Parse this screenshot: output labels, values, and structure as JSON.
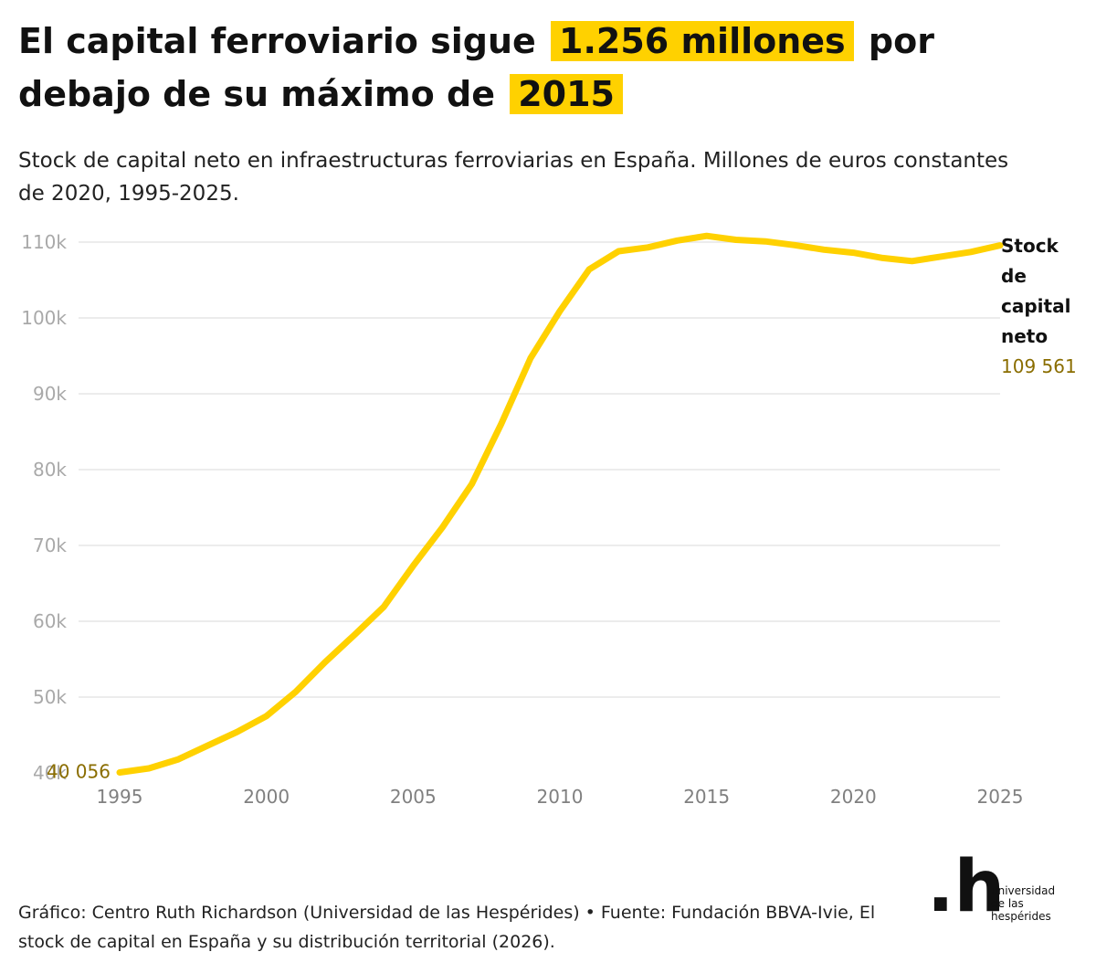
{
  "header": {
    "title_part1": "El capital ferroviario sigue",
    "title_highlight1": "1.256 millones",
    "title_part2": "por debajo de su máximo de",
    "title_highlight2": "2015",
    "subtitle": "Stock de capital neto en infraestructuras ferroviarias en España. Millones de euros constantes de 2020, 1995-2025."
  },
  "colors": {
    "line": "#ffd100",
    "highlight": "#ffd100",
    "grid": "#e6e6e6",
    "value_label": "#8a6d00"
  },
  "chart_data": {
    "type": "line",
    "title": "",
    "xlabel": "",
    "ylabel": "",
    "x": [
      1995,
      1996,
      1997,
      1998,
      1999,
      2000,
      2001,
      2002,
      2003,
      2004,
      2005,
      2006,
      2007,
      2008,
      2009,
      2010,
      2011,
      2012,
      2013,
      2014,
      2015,
      2016,
      2017,
      2018,
      2019,
      2020,
      2021,
      2022,
      2023,
      2024,
      2025
    ],
    "series": [
      {
        "name": "Stock de capital neto",
        "values": [
          40056,
          40600,
          41800,
          43600,
          45400,
          47500,
          50700,
          54600,
          58200,
          61900,
          67300,
          72400,
          78100,
          86000,
          94700,
          100900,
          106400,
          108800,
          109300,
          110200,
          110817,
          110300,
          110100,
          109600,
          109000,
          108600,
          107900,
          107500,
          108100,
          108700,
          109561
        ]
      }
    ],
    "ylim": [
      40000,
      110000
    ],
    "xlim": [
      1995,
      2025
    ],
    "y_ticks": [
      "40k",
      "50k",
      "60k",
      "70k",
      "80k",
      "90k",
      "100k",
      "110k"
    ],
    "y_tick_values": [
      40000,
      50000,
      60000,
      70000,
      80000,
      90000,
      100000,
      110000
    ],
    "x_ticks": [
      "1995",
      "2000",
      "2005",
      "2010",
      "2015",
      "2020",
      "2025"
    ],
    "x_tick_values": [
      1995,
      2000,
      2005,
      2010,
      2015,
      2020,
      2025
    ],
    "grid": true,
    "legend": "none",
    "end_label_lines": [
      "Stock",
      "de",
      "capital",
      "neto"
    ],
    "end_value_label": "109 561",
    "start_value_label": "40 056"
  },
  "footer": {
    "credit": "Gráfico: Centro Ruth Richardson (Universidad de las Hespérides) • Fuente: Fundación BBVA-Ivie, El stock de capital en España y su distribución territorial (2026)."
  },
  "logo": {
    "mark": ".h",
    "line1": "universidad",
    "line2": "de las",
    "line3": "hespérides"
  }
}
